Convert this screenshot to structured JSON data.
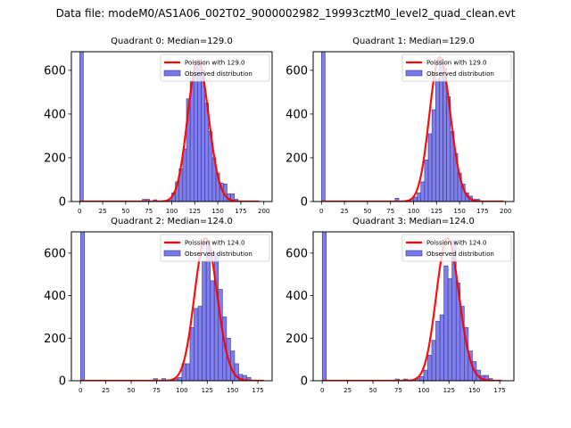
{
  "suptitle": "Data file: modeM0/AS1A06_002T02_9000002982_19993cztM0_level2_quad_clean.evt",
  "colors": {
    "bar_fill": "#7777ee",
    "bar_edge": "#3a3a7a",
    "curve": "#ff0000",
    "axis": "#000000"
  },
  "chart_data": [
    {
      "type": "bar",
      "title": "Quadrant 0: Median=129.0",
      "xlabel": "",
      "ylabel": "",
      "xlim": [
        -9,
        209
      ],
      "ylim": [
        0,
        685
      ],
      "xticks": [
        0,
        25,
        50,
        75,
        100,
        125,
        150,
        175,
        200
      ],
      "yticks": [
        0,
        200,
        400,
        600
      ],
      "legend": {
        "position": "top-right",
        "entries": [
          "Poission with 129.0",
          "Observed distribution"
        ]
      },
      "bin_width": 4,
      "bins": [
        {
          "x": 0,
          "count": 2000
        },
        {
          "x": 68,
          "count": 10
        },
        {
          "x": 72,
          "count": 10
        },
        {
          "x": 80,
          "count": 8
        },
        {
          "x": 96,
          "count": 8
        },
        {
          "x": 100,
          "count": 40
        },
        {
          "x": 104,
          "count": 90
        },
        {
          "x": 108,
          "count": 150
        },
        {
          "x": 112,
          "count": 240
        },
        {
          "x": 116,
          "count": 470
        },
        {
          "x": 120,
          "count": 550
        },
        {
          "x": 124,
          "count": 620
        },
        {
          "x": 128,
          "count": 640
        },
        {
          "x": 132,
          "count": 600
        },
        {
          "x": 136,
          "count": 450
        },
        {
          "x": 140,
          "count": 320
        },
        {
          "x": 144,
          "count": 200
        },
        {
          "x": 148,
          "count": 130
        },
        {
          "x": 152,
          "count": 85
        },
        {
          "x": 156,
          "count": 80
        },
        {
          "x": 160,
          "count": 35
        },
        {
          "x": 164,
          "count": 35
        },
        {
          "x": 168,
          "count": 10
        }
      ],
      "curve": {
        "label": "Poission with 129.0",
        "mean": 129.0,
        "peak": 645,
        "x_range": [
          0,
          195
        ]
      }
    },
    {
      "type": "bar",
      "title": "Quadrant 1: Median=129.0",
      "xlabel": "",
      "ylabel": "",
      "xlim": [
        -9,
        209
      ],
      "ylim": [
        0,
        685
      ],
      "xticks": [
        0,
        25,
        50,
        75,
        100,
        125,
        150,
        175,
        200
      ],
      "yticks": [
        0,
        200,
        400,
        600
      ],
      "legend": {
        "position": "top-right",
        "entries": [
          "Poission with 129.0",
          "Observed distribution"
        ]
      },
      "bin_width": 4,
      "bins": [
        {
          "x": 0,
          "count": 2000
        },
        {
          "x": 80,
          "count": 15
        },
        {
          "x": 92,
          "count": 5
        },
        {
          "x": 96,
          "count": 10
        },
        {
          "x": 100,
          "count": 20
        },
        {
          "x": 104,
          "count": 40
        },
        {
          "x": 108,
          "count": 90
        },
        {
          "x": 112,
          "count": 190
        },
        {
          "x": 116,
          "count": 310
        },
        {
          "x": 120,
          "count": 420
        },
        {
          "x": 124,
          "count": 560
        },
        {
          "x": 128,
          "count": 650
        },
        {
          "x": 132,
          "count": 610
        },
        {
          "x": 136,
          "count": 480
        },
        {
          "x": 140,
          "count": 320
        },
        {
          "x": 144,
          "count": 220
        },
        {
          "x": 148,
          "count": 130
        },
        {
          "x": 152,
          "count": 80
        },
        {
          "x": 156,
          "count": 40
        },
        {
          "x": 160,
          "count": 25
        },
        {
          "x": 164,
          "count": 10
        },
        {
          "x": 168,
          "count": 10
        }
      ],
      "curve": {
        "label": "Poission with 129.0",
        "mean": 129.0,
        "peak": 660,
        "x_range": [
          0,
          198
        ]
      }
    },
    {
      "type": "bar",
      "title": "Quadrant 2: Median=124.0",
      "xlabel": "",
      "ylabel": "",
      "xlim": [
        -9,
        189
      ],
      "ylim": [
        0,
        700
      ],
      "xticks": [
        0,
        25,
        50,
        75,
        100,
        125,
        150,
        175
      ],
      "yticks": [
        0,
        200,
        400,
        600
      ],
      "legend": {
        "position": "top-right",
        "entries": [
          "Poission with 124.0",
          "Observed distribution"
        ]
      },
      "bin_width": 4,
      "bins": [
        {
          "x": 0,
          "count": 2000
        },
        {
          "x": 56,
          "count": 3
        },
        {
          "x": 72,
          "count": 10
        },
        {
          "x": 80,
          "count": 10
        },
        {
          "x": 92,
          "count": 10
        },
        {
          "x": 96,
          "count": 15
        },
        {
          "x": 100,
          "count": 80
        },
        {
          "x": 104,
          "count": 80
        },
        {
          "x": 108,
          "count": 250
        },
        {
          "x": 112,
          "count": 340
        },
        {
          "x": 116,
          "count": 350
        },
        {
          "x": 120,
          "count": 560
        },
        {
          "x": 124,
          "count": 660
        },
        {
          "x": 128,
          "count": 470
        },
        {
          "x": 132,
          "count": 600
        },
        {
          "x": 136,
          "count": 430
        },
        {
          "x": 140,
          "count": 300
        },
        {
          "x": 144,
          "count": 200
        },
        {
          "x": 148,
          "count": 140
        },
        {
          "x": 152,
          "count": 80
        },
        {
          "x": 156,
          "count": 30
        },
        {
          "x": 160,
          "count": 25
        },
        {
          "x": 164,
          "count": 15
        }
      ],
      "curve": {
        "label": "Poission with 124.0",
        "mean": 124.0,
        "peak": 670,
        "x_range": [
          0,
          181
        ]
      }
    },
    {
      "type": "bar",
      "title": "Quadrant 3: Median=124.0",
      "xlabel": "",
      "ylabel": "",
      "xlim": [
        -9,
        189
      ],
      "ylim": [
        0,
        700
      ],
      "xticks": [
        0,
        25,
        50,
        75,
        100,
        125,
        150,
        175
      ],
      "yticks": [
        0,
        200,
        400,
        600
      ],
      "legend": {
        "position": "top-right",
        "entries": [
          "Poission with 124.0",
          "Observed distribution"
        ]
      },
      "bin_width": 4,
      "bins": [
        {
          "x": 0,
          "count": 2000
        },
        {
          "x": 72,
          "count": 8
        },
        {
          "x": 80,
          "count": 8
        },
        {
          "x": 92,
          "count": 10
        },
        {
          "x": 96,
          "count": 20
        },
        {
          "x": 100,
          "count": 50
        },
        {
          "x": 104,
          "count": 120
        },
        {
          "x": 108,
          "count": 190
        },
        {
          "x": 112,
          "count": 280
        },
        {
          "x": 116,
          "count": 310
        },
        {
          "x": 120,
          "count": 540
        },
        {
          "x": 124,
          "count": 480
        },
        {
          "x": 128,
          "count": 660
        },
        {
          "x": 132,
          "count": 460
        },
        {
          "x": 136,
          "count": 350
        },
        {
          "x": 140,
          "count": 250
        },
        {
          "x": 144,
          "count": 140
        },
        {
          "x": 148,
          "count": 90
        },
        {
          "x": 152,
          "count": 50
        },
        {
          "x": 156,
          "count": 25
        },
        {
          "x": 160,
          "count": 25
        },
        {
          "x": 164,
          "count": 10
        }
      ],
      "curve": {
        "label": "Poission with 124.0",
        "mean": 124.0,
        "peak": 670,
        "x_range": [
          0,
          177
        ]
      }
    }
  ]
}
